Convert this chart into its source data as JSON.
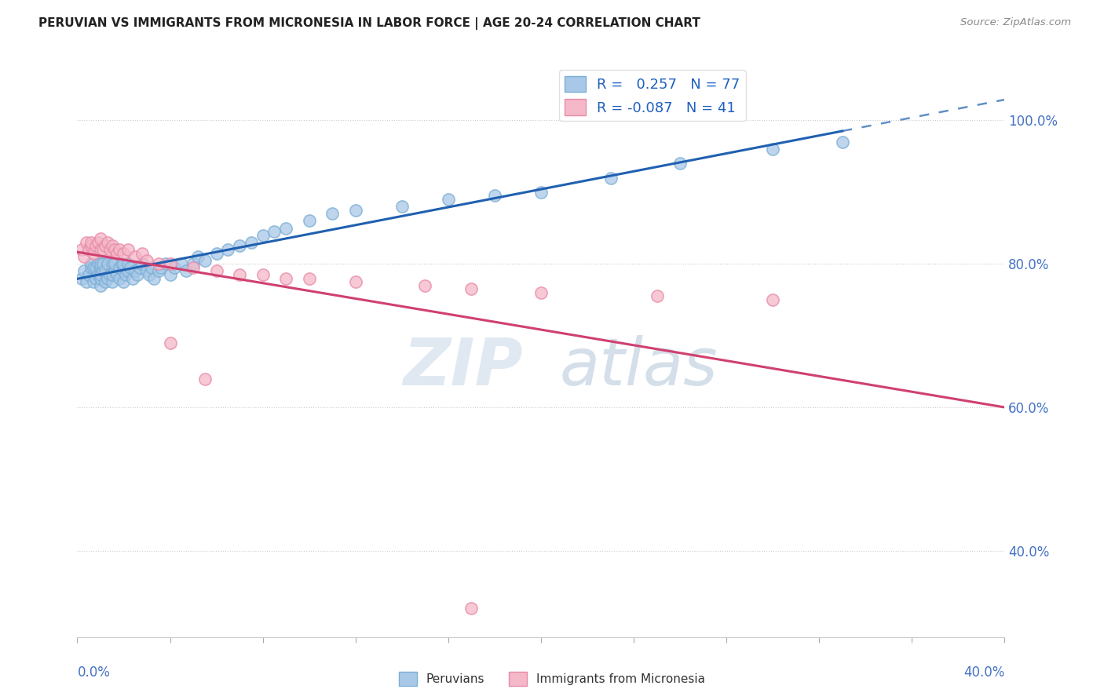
{
  "title": "PERUVIAN VS IMMIGRANTS FROM MICRONESIA IN LABOR FORCE | AGE 20-24 CORRELATION CHART",
  "source": "Source: ZipAtlas.com",
  "R1": 0.257,
  "N1": 77,
  "R2": -0.087,
  "N2": 41,
  "blue_color": "#a8c8e8",
  "blue_edge_color": "#7bafd4",
  "pink_color": "#f4b8c8",
  "pink_edge_color": "#e88aa8",
  "blue_line_color": "#2060b0",
  "pink_line_color": "#d04070",
  "watermark_zip": "ZIP",
  "watermark_atlas": "atlas",
  "legend_label1": "Peruvians",
  "legend_label2": "Immigrants from Micronesia",
  "xmin": 0.0,
  "xmax": 0.4,
  "ymin": 0.28,
  "ymax": 1.08,
  "ytick_vals": [
    1.0,
    0.8,
    0.6,
    0.4
  ],
  "ytick_labels": [
    "100.0%",
    "80.0%",
    "60.0%",
    "40.0%"
  ],
  "blue_x": [
    0.002,
    0.003,
    0.004,
    0.005,
    0.006,
    0.006,
    0.007,
    0.007,
    0.008,
    0.008,
    0.009,
    0.009,
    0.01,
    0.01,
    0.01,
    0.01,
    0.01,
    0.011,
    0.011,
    0.012,
    0.012,
    0.013,
    0.013,
    0.014,
    0.015,
    0.015,
    0.015,
    0.016,
    0.016,
    0.017,
    0.018,
    0.018,
    0.019,
    0.02,
    0.02,
    0.02,
    0.021,
    0.022,
    0.022,
    0.023,
    0.024,
    0.025,
    0.026,
    0.027,
    0.028,
    0.03,
    0.031,
    0.032,
    0.033,
    0.035,
    0.036,
    0.038,
    0.04,
    0.042,
    0.045,
    0.047,
    0.05,
    0.052,
    0.055,
    0.06,
    0.065,
    0.07,
    0.075,
    0.08,
    0.085,
    0.09,
    0.1,
    0.11,
    0.12,
    0.14,
    0.16,
    0.18,
    0.2,
    0.23,
    0.26,
    0.3,
    0.33
  ],
  "blue_y": [
    0.78,
    0.79,
    0.775,
    0.785,
    0.795,
    0.8,
    0.775,
    0.795,
    0.78,
    0.795,
    0.785,
    0.8,
    0.77,
    0.78,
    0.785,
    0.795,
    0.8,
    0.79,
    0.8,
    0.775,
    0.79,
    0.78,
    0.8,
    0.785,
    0.775,
    0.785,
    0.8,
    0.79,
    0.8,
    0.785,
    0.78,
    0.795,
    0.8,
    0.775,
    0.79,
    0.8,
    0.785,
    0.79,
    0.8,
    0.795,
    0.78,
    0.79,
    0.785,
    0.795,
    0.8,
    0.79,
    0.785,
    0.795,
    0.78,
    0.79,
    0.795,
    0.8,
    0.785,
    0.795,
    0.8,
    0.79,
    0.8,
    0.81,
    0.805,
    0.815,
    0.82,
    0.825,
    0.83,
    0.84,
    0.845,
    0.85,
    0.86,
    0.87,
    0.875,
    0.88,
    0.89,
    0.895,
    0.9,
    0.92,
    0.94,
    0.96,
    0.97
  ],
  "pink_x": [
    0.002,
    0.003,
    0.004,
    0.005,
    0.006,
    0.006,
    0.007,
    0.008,
    0.009,
    0.01,
    0.01,
    0.011,
    0.012,
    0.013,
    0.014,
    0.015,
    0.016,
    0.017,
    0.018,
    0.02,
    0.022,
    0.025,
    0.028,
    0.03,
    0.035,
    0.04,
    0.05,
    0.06,
    0.07,
    0.08,
    0.09,
    0.1,
    0.12,
    0.15,
    0.17,
    0.2,
    0.25,
    0.3,
    0.04,
    0.055,
    0.17
  ],
  "pink_y": [
    0.82,
    0.81,
    0.83,
    0.82,
    0.825,
    0.83,
    0.815,
    0.825,
    0.83,
    0.82,
    0.835,
    0.82,
    0.825,
    0.83,
    0.82,
    0.825,
    0.82,
    0.815,
    0.82,
    0.815,
    0.82,
    0.81,
    0.815,
    0.805,
    0.8,
    0.8,
    0.795,
    0.79,
    0.785,
    0.785,
    0.78,
    0.78,
    0.775,
    0.77,
    0.765,
    0.76,
    0.755,
    0.75,
    0.69,
    0.64,
    0.32
  ]
}
